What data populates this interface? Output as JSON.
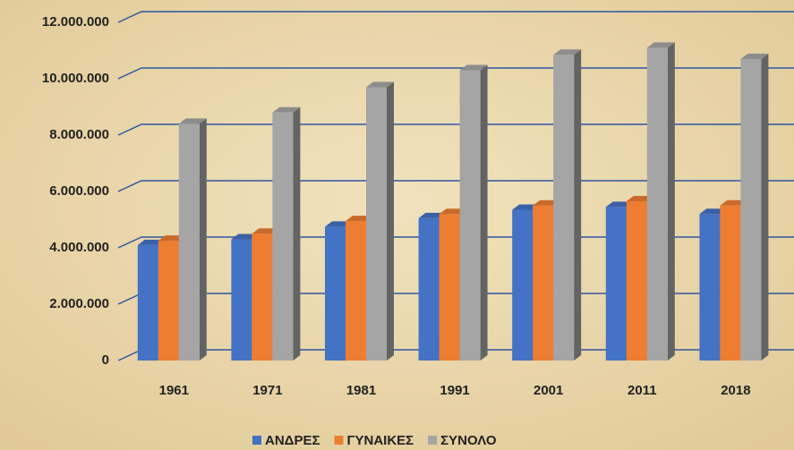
{
  "chart_data": {
    "type": "bar",
    "categories": [
      "1961",
      "1971",
      "1981",
      "1991",
      "2001",
      "2011",
      "2018"
    ],
    "series": [
      {
        "name": "ΑΝΔΡΕΣ",
        "color": "#4472c4",
        "values": [
          4100000,
          4300000,
          4750000,
          5050000,
          5350000,
          5450000,
          5200000
        ]
      },
      {
        "name": "ΓΥΝΑΙΚΕΣ",
        "color": "#ed7d31",
        "values": [
          4250000,
          4500000,
          4950000,
          5200000,
          5500000,
          5650000,
          5500000
        ]
      },
      {
        "name": "ΣΥΝΟΛΟ",
        "color": "#a5a5a5",
        "values": [
          8400000,
          8800000,
          9700000,
          10300000,
          10850000,
          11100000,
          10700000
        ]
      }
    ],
    "ylim": [
      0,
      12000000
    ],
    "yticks": [
      0,
      {
        "value": 2000000,
        "label": "2.000.000"
      },
      {
        "value": 4000000,
        "label": "4.000.000"
      },
      {
        "value": 6000000,
        "label": "6.000.000"
      },
      {
        "value": 8000000,
        "label": "8.000.000"
      },
      {
        "value": 10000000,
        "label": "10.000.000"
      },
      {
        "value": 12000000,
        "label": "12.000.000"
      }
    ],
    "grid": true,
    "legend": "bottom"
  }
}
